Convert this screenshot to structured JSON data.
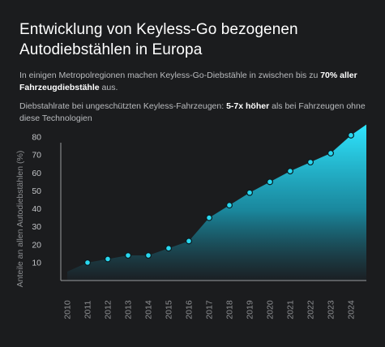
{
  "title": "Entwicklung von Keyless-Go bezogenen Autodiebstählen in Europa",
  "description_1": {
    "pre": "In einigen Metropolregionen machen Keyless-Go-Diebstähle in zwischen bis zu ",
    "highlight": "70% aller Fahrzeugdiebstähle",
    "post": " aus."
  },
  "description_2": {
    "pre": "Diebstahlrate bei ungeschützten Keyless-Fahrzeugen: ",
    "highlight": "5-7x höher",
    "post": " als bei Fahrzeugen ohne diese Technologien"
  },
  "colors": {
    "background": "#1b1c1e",
    "area_top": "#2fe6ff",
    "area_bottom": "#1b2228",
    "marker": "#29d8f0",
    "axis_text": "#8c8e91"
  },
  "chart_data": {
    "type": "area",
    "title": "",
    "xlabel": "",
    "ylabel": "Anteile an allen Autodiebstählen (%)",
    "x": [
      "2010",
      "2011",
      "2012",
      "2013",
      "2014",
      "2015",
      "2016",
      "2017",
      "2018",
      "2019",
      "2020",
      "2021",
      "2022",
      "2023",
      "2024"
    ],
    "yticks": [
      10,
      20,
      30,
      40,
      50,
      60,
      70,
      80
    ],
    "series": [
      {
        "values": [
          5,
          10,
          12,
          14,
          14,
          18,
          22,
          35,
          42,
          49,
          55,
          61,
          66,
          71,
          81
        ],
        "markers": [
          false,
          true,
          true,
          true,
          true,
          true,
          true,
          true,
          true,
          true,
          true,
          true,
          true,
          true,
          true
        ]
      }
    ],
    "area_end_value": 87,
    "ylim": [
      0,
      85
    ],
    "grid": false,
    "legend": "none"
  }
}
